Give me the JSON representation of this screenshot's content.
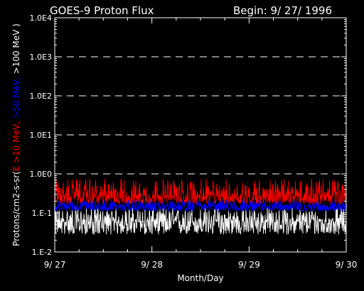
{
  "chart_data": {
    "type": "line",
    "title": "GOES-9 Proton Flux",
    "begin_label": "Begin: 9/ 27/ 1996",
    "ylabel_prefix": "Protons/cm2-s-sr(",
    "ylabel_segments": [
      {
        "text": "E >10 MeV, ",
        "color": "#ff0000"
      },
      {
        "text": ">50 MeV, ",
        "color": "#0000ff"
      },
      {
        "text": ">100 MeV )",
        "color": "#ffffff"
      }
    ],
    "xlabel": "Month/Day",
    "y_scale": "log",
    "ylim": [
      0.01,
      10000
    ],
    "y_ticks": [
      {
        "value": 0.01,
        "label": "1.E-2"
      },
      {
        "value": 0.1,
        "label": "1.E-1"
      },
      {
        "value": 1,
        "label": "1.0E0"
      },
      {
        "value": 10,
        "label": "1.0E1"
      },
      {
        "value": 100,
        "label": "1.0E2"
      },
      {
        "value": 1000,
        "label": "1.0E3"
      },
      {
        "value": 10000,
        "label": "1.0E4"
      }
    ],
    "x_ticks": [
      "9/ 27",
      "9/ 28",
      "9/ 29",
      "9/ 30"
    ],
    "xlim": [
      "1996-09-27",
      "1996-09-30"
    ],
    "grid": "dashed horizontal at each decade",
    "series": [
      {
        "name": ">10 MeV",
        "color": "#ff0000",
        "y_range": [
          0.17,
          0.75
        ],
        "typical": 0.27
      },
      {
        "name": ">50 MeV",
        "color": "#0000ff",
        "y_range": [
          0.11,
          0.22
        ],
        "typical": 0.15
      },
      {
        "name": ">100 MeV",
        "color": "#ffffff",
        "y_range": [
          0.028,
          0.14
        ],
        "typical": 0.06
      }
    ]
  }
}
